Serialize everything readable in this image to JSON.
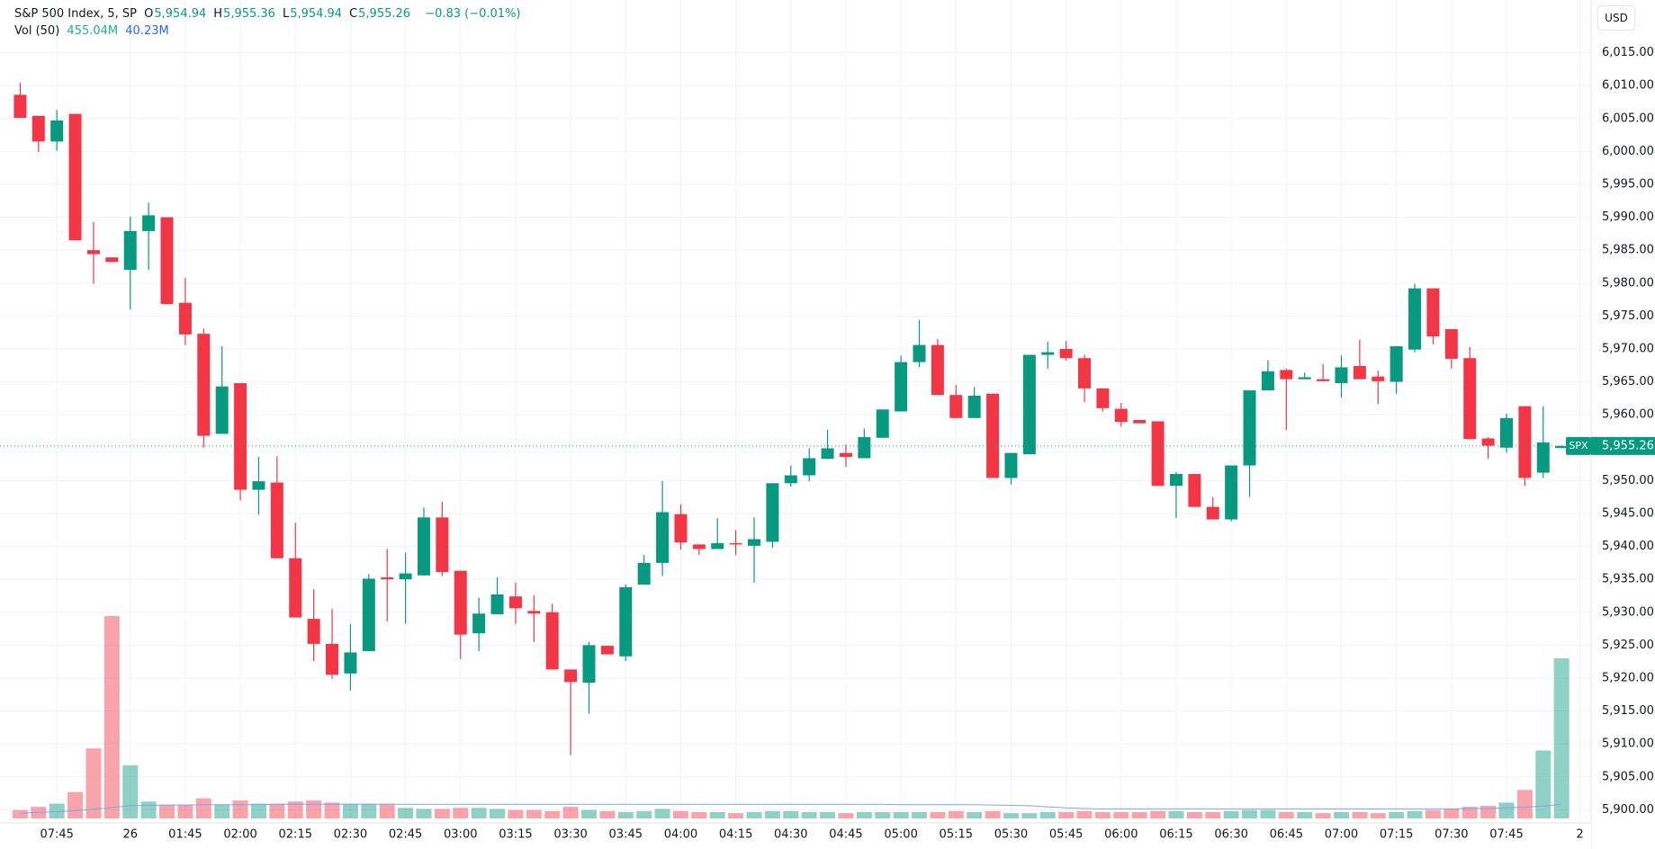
{
  "chart_data": {
    "type": "candlestick",
    "title": "S&P 500 Index, 5, SP",
    "ohlc": [
      {
        "label": "O",
        "value": "5,954.94"
      },
      {
        "label": "H",
        "value": "5,955.36"
      },
      {
        "label": "L",
        "value": "5,954.94"
      },
      {
        "label": "C",
        "value": "5,955.26"
      }
    ],
    "change": "−0.83 (−0.01%)",
    "volume_label": "Vol (50)",
    "volume_value": "455.04M",
    "volume_ma_value": "40.23M",
    "currency": "USD",
    "symbol": "SPX",
    "last_price": {
      "value": 5955.26,
      "label": "5,955.26"
    },
    "up_color": "#089981",
    "down_color": "#f23645",
    "volume_ma_color": "#7fa5f5",
    "grid": true,
    "categories": [
      null,
      null,
      "07:45",
      null,
      null,
      null,
      "26",
      null,
      null,
      "01:45",
      null,
      null,
      "02:00",
      null,
      null,
      "02:15",
      null,
      null,
      "02:30",
      null,
      null,
      "02:45",
      null,
      null,
      "03:00",
      null,
      null,
      "03:15",
      null,
      null,
      "03:30",
      null,
      null,
      "03:45",
      null,
      null,
      "04:00",
      null,
      null,
      "04:15",
      null,
      null,
      "04:30",
      null,
      null,
      "04:45",
      null,
      null,
      "05:00",
      null,
      null,
      "05:15",
      null,
      null,
      "05:30",
      null,
      null,
      "05:45",
      null,
      null,
      "06:00",
      null,
      null,
      "06:15",
      null,
      null,
      "06:30",
      null,
      null,
      "06:45",
      null,
      null,
      "07:00",
      null,
      null,
      "07:15",
      null,
      null,
      "07:30",
      null,
      null,
      "07:45",
      null,
      null,
      null,
      "2"
    ],
    "open": [
      6008.6,
      6005.4,
      6001.5,
      6005.7,
      5985.0,
      5983.9,
      5982.0,
      5987.9,
      5990.0,
      5977.0,
      5972.3,
      5957.1,
      5964.8,
      5948.6,
      5949.7,
      5938.2,
      5929.0,
      5925.2,
      5920.7,
      5924.1,
      5935.3,
      5935.0,
      5935.6,
      5944.4,
      5936.3,
      5926.8,
      5929.7,
      5932.4,
      5930.2,
      5930.0,
      5921.3,
      5919.3,
      5924.9,
      5923.3,
      5934.2,
      5937.5,
      5944.9,
      5940.3,
      5939.6,
      5940.5,
      5940.1,
      5940.7,
      5949.6,
      5950.8,
      5953.3,
      5954.2,
      5953.4,
      5956.5,
      5960.5,
      5968.0,
      5970.6,
      5963.0,
      5959.5,
      5963.2,
      5950.4,
      5954.0,
      5969.1,
      5970.0,
      5968.6,
      5964.0,
      5960.9,
      5959.2,
      5959.0,
      5949.2,
      5951.0,
      5946.0,
      5944.1,
      5952.3,
      5963.7,
      5966.8,
      5965.4,
      5965.4,
      5964.8,
      5967.4,
      5965.8,
      5965.0,
      5969.9,
      5979.2,
      5973.0,
      5968.6,
      5956.4,
      5955.0,
      5961.3,
      5951.2,
      5954.94,
      null
    ],
    "high": [
      6010.4,
      6005.4,
      6006.3,
      6005.7,
      5989.3,
      5983.9,
      5990.1,
      5992.2,
      5990.0,
      5980.8,
      5973.1,
      5970.4,
      5964.8,
      5953.6,
      5953.7,
      5943.6,
      5933.5,
      5930.5,
      5928.2,
      5935.8,
      5939.6,
      5939.0,
      5945.9,
      5946.8,
      5936.3,
      5932.2,
      5935.3,
      5934.5,
      5932.6,
      5931.3,
      5921.3,
      5925.5,
      5924.9,
      5934.2,
      5938.7,
      5949.9,
      5946.4,
      5940.3,
      5944.3,
      5942.5,
      5944.4,
      5949.6,
      5952.3,
      5954.9,
      5957.7,
      5955.5,
      5957.9,
      5960.8,
      5969.0,
      5974.4,
      5971.5,
      5964.5,
      5964.2,
      5963.2,
      5954.2,
      5969.1,
      5971.1,
      5971.2,
      5969.1,
      5964.0,
      5961.8,
      5959.2,
      5959.0,
      5951.3,
      5951.0,
      5947.5,
      5952.3,
      5963.7,
      5968.3,
      5967.0,
      5966.4,
      5967.7,
      5969.0,
      5971.4,
      5966.7,
      5970.4,
      5979.9,
      5979.2,
      5973.0,
      5970.3,
      5956.6,
      5960.2,
      5961.3,
      5961.3,
      5955.36,
      null
    ],
    "low": [
      6005.1,
      5999.9,
      6000.1,
      5986.5,
      5979.9,
      5983.2,
      5976.0,
      5982.0,
      5976.8,
      5970.6,
      5955.0,
      5957.1,
      5947.0,
      5944.8,
      5938.2,
      5929.2,
      5922.6,
      5919.9,
      5918.1,
      5924.1,
      5928.6,
      5928.3,
      5935.6,
      5935.5,
      5922.9,
      5924.1,
      5929.7,
      5928.2,
      5925.5,
      5921.3,
      5908.3,
      5914.6,
      5923.6,
      5922.6,
      5934.2,
      5935.5,
      5939.5,
      5938.7,
      5939.6,
      5938.7,
      5934.5,
      5939.8,
      5949.1,
      5949.9,
      5953.3,
      5952.1,
      5953.4,
      5956.5,
      5960.5,
      5967.2,
      5963.0,
      5959.5,
      5959.5,
      5950.4,
      5949.4,
      5954.0,
      5967.0,
      5968.2,
      5961.9,
      5960.5,
      5958.2,
      5958.7,
      5949.2,
      5944.3,
      5946.0,
      5944.1,
      5943.8,
      5947.5,
      5963.7,
      5957.7,
      5965.4,
      5965.1,
      5962.6,
      5965.4,
      5961.6,
      5963.2,
      5969.5,
      5970.7,
      5967.0,
      5956.3,
      5953.3,
      5954.2,
      5949.2,
      5950.4,
      5954.94,
      null
    ],
    "close": [
      6005.1,
      6001.5,
      6004.7,
      5986.5,
      5984.4,
      5983.2,
      5987.9,
      5990.3,
      5976.8,
      5972.2,
      5956.8,
      5964.3,
      5948.6,
      5949.9,
      5938.2,
      5929.2,
      5925.2,
      5920.5,
      5923.9,
      5935.1,
      5935.0,
      5935.9,
      5944.4,
      5936.1,
      5926.6,
      5929.8,
      5932.7,
      5930.6,
      5929.8,
      5921.3,
      5919.4,
      5925.0,
      5923.6,
      5933.8,
      5937.5,
      5945.2,
      5940.6,
      5939.6,
      5940.5,
      5940.3,
      5941.1,
      5949.6,
      5950.8,
      5953.4,
      5954.9,
      5953.6,
      5956.6,
      5960.8,
      5968.0,
      5970.6,
      5963.0,
      5959.5,
      5962.9,
      5950.4,
      5954.2,
      5969.1,
      5969.5,
      5968.6,
      5964.0,
      5961.0,
      5958.9,
      5958.7,
      5949.2,
      5951.0,
      5946.0,
      5944.1,
      5952.3,
      5963.7,
      5966.6,
      5965.4,
      5965.7,
      5965.1,
      5967.2,
      5965.4,
      5965.1,
      5970.4,
      5979.2,
      5971.9,
      5968.5,
      5956.3,
      5955.3,
      5959.5,
      5950.4,
      5955.8,
      5955.26,
      null
    ],
    "volume": [
      24,
      33,
      42,
      75,
      199,
      575,
      151,
      48,
      39,
      39,
      57,
      39,
      51,
      42,
      42,
      48,
      51,
      45,
      42,
      42,
      42,
      30,
      27,
      27,
      30,
      30,
      27,
      24,
      24,
      21,
      33,
      24,
      21,
      18,
      21,
      27,
      21,
      18,
      18,
      15,
      18,
      21,
      21,
      18,
      18,
      15,
      18,
      18,
      18,
      18,
      18,
      21,
      18,
      21,
      15,
      15,
      18,
      18,
      21,
      18,
      18,
      18,
      21,
      21,
      18,
      18,
      21,
      24,
      24,
      18,
      18,
      15,
      18,
      18,
      15,
      18,
      21,
      24,
      27,
      33,
      36,
      45,
      81,
      193,
      455.04,
      null
    ],
    "volume_ma": [
      15,
      17,
      19,
      22,
      26,
      31,
      36,
      37,
      38,
      38,
      39,
      39,
      39,
      39,
      40,
      40,
      40,
      40,
      40,
      40,
      40,
      40,
      40,
      40,
      40,
      40,
      40,
      40,
      40,
      40,
      40,
      40,
      40,
      40,
      40,
      40,
      40,
      40,
      40,
      40,
      40,
      40,
      40,
      40,
      40,
      40,
      40,
      40,
      39,
      39,
      39,
      39,
      39,
      38,
      37,
      36,
      33,
      30,
      28,
      27,
      27,
      27,
      27,
      27,
      27,
      27,
      27,
      27,
      27,
      27,
      27,
      27,
      27,
      27,
      27,
      27,
      27,
      27,
      27,
      28,
      29,
      30,
      32,
      35,
      40.23,
      null
    ],
    "ylim": [
      5898,
      6023
    ],
    "yticks": [
      {
        "value": 5900,
        "label": "5,900.00"
      },
      {
        "value": 5905,
        "label": "5,905.00"
      },
      {
        "value": 5910,
        "label": "5,910.00"
      },
      {
        "value": 5915,
        "label": "5,915.00"
      },
      {
        "value": 5920,
        "label": "5,920.00"
      },
      {
        "value": 5925,
        "label": "5,925.00"
      },
      {
        "value": 5930,
        "label": "5,930.00"
      },
      {
        "value": 5935,
        "label": "5,935.00"
      },
      {
        "value": 5940,
        "label": "5,940.00"
      },
      {
        "value": 5945,
        "label": "5,945.00"
      },
      {
        "value": 5950,
        "label": "5,950.00"
      },
      {
        "value": 5955,
        "label": "5,955.00"
      },
      {
        "value": 5960,
        "label": "5,960.00"
      },
      {
        "value": 5965,
        "label": "5,965.00"
      },
      {
        "value": 5970,
        "label": "5,970.00"
      },
      {
        "value": 5975,
        "label": "5,975.00"
      },
      {
        "value": 5980,
        "label": "5,980.00"
      },
      {
        "value": 5985,
        "label": "5,985.00"
      },
      {
        "value": 5990,
        "label": "5,990.00"
      },
      {
        "value": 5995,
        "label": "5,995.00"
      },
      {
        "value": 6000,
        "label": "6,000.00"
      },
      {
        "value": 6005,
        "label": "6,005.00"
      },
      {
        "value": 6010,
        "label": "6,010.00"
      },
      {
        "value": 6015,
        "label": "6,015.00"
      }
    ]
  }
}
